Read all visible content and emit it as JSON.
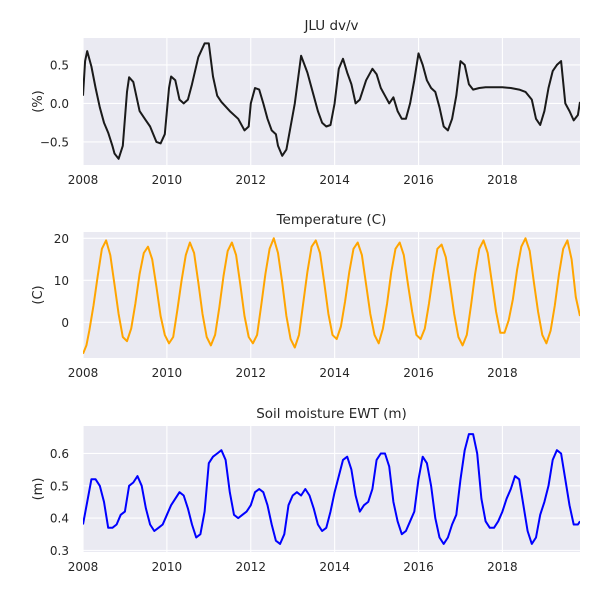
{
  "chart_data": [
    {
      "type": "line",
      "title": "JLU dv/v",
      "xlabel": "",
      "ylabel": "(%)",
      "xlim": [
        2008.0,
        2019.85
      ],
      "ylim": [
        -0.8,
        0.85
      ],
      "xticks": [
        2008,
        2010,
        2012,
        2014,
        2016,
        2018
      ],
      "xtick_labels": [
        "2008",
        "2010",
        "2012",
        "2014",
        "2016",
        "2018"
      ],
      "yticks": [
        -0.5,
        0.0,
        0.5
      ],
      "ytick_labels": [
        "−0.5",
        "0.0",
        "0.5"
      ],
      "grid": true,
      "legend": "none",
      "series": [
        {
          "color": "#1a1a1a",
          "x": [
            2008.0,
            2008.05,
            2008.1,
            2008.2,
            2008.3,
            2008.4,
            2008.5,
            2008.6,
            2008.7,
            2008.75,
            2008.85,
            2008.95,
            2009.05,
            2009.1,
            2009.2,
            2009.35,
            2009.5,
            2009.6,
            2009.75,
            2009.85,
            2009.95,
            2010.05,
            2010.1,
            2010.2,
            2010.3,
            2010.4,
            2010.5,
            2010.6,
            2010.75,
            2010.9,
            2011.0,
            2011.1,
            2011.2,
            2011.3,
            2011.5,
            2011.7,
            2011.85,
            2011.95,
            2012.0,
            2012.1,
            2012.2,
            2012.3,
            2012.4,
            2012.5,
            2012.6,
            2012.65,
            2012.75,
            2012.85,
            2012.95,
            2013.05,
            2013.2,
            2013.35,
            2013.5,
            2013.6,
            2013.7,
            2013.8,
            2013.9,
            2014.0,
            2014.1,
            2014.2,
            2014.3,
            2014.4,
            2014.5,
            2014.6,
            2014.75,
            2014.9,
            2015.0,
            2015.1,
            2015.2,
            2015.3,
            2015.4,
            2015.5,
            2015.6,
            2015.7,
            2015.8,
            2015.9,
            2016.0,
            2016.1,
            2016.2,
            2016.3,
            2016.4,
            2016.5,
            2016.6,
            2016.7,
            2016.8,
            2016.9,
            2017.0,
            2017.1,
            2017.2,
            2017.3,
            2017.45,
            2017.6,
            2017.8,
            2018.0,
            2018.2,
            2018.4,
            2018.55,
            2018.7,
            2018.8,
            2018.9,
            2019.0,
            2019.1,
            2019.2,
            2019.3,
            2019.4,
            2019.5,
            2019.6,
            2019.7,
            2019.8,
            2019.85
          ],
          "y": [
            0.1,
            0.55,
            0.68,
            0.48,
            0.2,
            -0.05,
            -0.25,
            -0.38,
            -0.55,
            -0.65,
            -0.72,
            -0.55,
            0.15,
            0.34,
            0.28,
            -0.1,
            -0.22,
            -0.3,
            -0.5,
            -0.52,
            -0.4,
            0.2,
            0.35,
            0.3,
            0.05,
            0.0,
            0.05,
            0.25,
            0.6,
            0.78,
            0.78,
            0.35,
            0.1,
            0.02,
            -0.1,
            -0.2,
            -0.35,
            -0.3,
            0.0,
            0.2,
            0.18,
            0.0,
            -0.2,
            -0.35,
            -0.4,
            -0.55,
            -0.68,
            -0.6,
            -0.3,
            0.0,
            0.62,
            0.4,
            0.1,
            -0.1,
            -0.25,
            -0.3,
            -0.28,
            0.0,
            0.45,
            0.58,
            0.4,
            0.25,
            0.0,
            0.05,
            0.3,
            0.45,
            0.38,
            0.2,
            0.1,
            0.0,
            0.08,
            -0.1,
            -0.2,
            -0.2,
            0.0,
            0.3,
            0.65,
            0.5,
            0.3,
            0.2,
            0.15,
            -0.05,
            -0.3,
            -0.35,
            -0.2,
            0.1,
            0.55,
            0.5,
            0.25,
            0.18,
            0.2,
            0.21,
            0.21,
            0.21,
            0.2,
            0.18,
            0.15,
            0.05,
            -0.2,
            -0.28,
            -0.1,
            0.2,
            0.42,
            0.5,
            0.55,
            0.0,
            -0.1,
            -0.22,
            -0.15,
            0.02
          ]
        }
      ]
    },
    {
      "type": "line",
      "title": "Temperature (C)",
      "xlabel": "",
      "ylabel": "(C)",
      "xlim": [
        2008.0,
        2019.85
      ],
      "ylim": [
        -8.5,
        21.5
      ],
      "xticks": [
        2008,
        2010,
        2012,
        2014,
        2016,
        2018
      ],
      "xtick_labels": [
        "2008",
        "2010",
        "2012",
        "2014",
        "2016",
        "2018"
      ],
      "yticks": [
        0,
        10,
        20
      ],
      "ytick_labels": [
        "0",
        "10",
        "20"
      ],
      "grid": true,
      "legend": "none",
      "series": [
        {
          "color": "#ffa500",
          "x": [
            2008.0,
            2008.08,
            2008.15,
            2008.25,
            2008.35,
            2008.45,
            2008.55,
            2008.65,
            2008.75,
            2008.85,
            2008.95,
            2009.05,
            2009.15,
            2009.25,
            2009.35,
            2009.45,
            2009.55,
            2009.65,
            2009.75,
            2009.85,
            2009.95,
            2010.05,
            2010.15,
            2010.25,
            2010.35,
            2010.45,
            2010.55,
            2010.65,
            2010.75,
            2010.85,
            2010.95,
            2011.05,
            2011.15,
            2011.25,
            2011.35,
            2011.45,
            2011.55,
            2011.65,
            2011.75,
            2011.85,
            2011.95,
            2012.05,
            2012.15,
            2012.25,
            2012.35,
            2012.45,
            2012.55,
            2012.65,
            2012.75,
            2012.85,
            2012.95,
            2013.05,
            2013.15,
            2013.25,
            2013.35,
            2013.45,
            2013.55,
            2013.65,
            2013.75,
            2013.85,
            2013.95,
            2014.05,
            2014.15,
            2014.25,
            2014.35,
            2014.45,
            2014.55,
            2014.65,
            2014.75,
            2014.85,
            2014.95,
            2015.05,
            2015.15,
            2015.25,
            2015.35,
            2015.45,
            2015.55,
            2015.65,
            2015.75,
            2015.85,
            2015.95,
            2016.05,
            2016.15,
            2016.25,
            2016.35,
            2016.45,
            2016.55,
            2016.65,
            2016.75,
            2016.85,
            2016.95,
            2017.05,
            2017.15,
            2017.25,
            2017.35,
            2017.45,
            2017.55,
            2017.65,
            2017.75,
            2017.85,
            2017.95,
            2018.05,
            2018.15,
            2018.25,
            2018.35,
            2018.45,
            2018.55,
            2018.65,
            2018.75,
            2018.85,
            2018.95,
            2019.05,
            2019.15,
            2019.25,
            2019.35,
            2019.45,
            2019.55,
            2019.65,
            2019.75,
            2019.85
          ],
          "y": [
            -7.5,
            -5.5,
            -2.0,
            4.0,
            11.0,
            17.5,
            19.5,
            16.0,
            9.0,
            2.0,
            -3.5,
            -4.5,
            -1.5,
            4.5,
            11.5,
            16.5,
            18.0,
            15.0,
            8.5,
            1.5,
            -3.0,
            -5.0,
            -3.5,
            3.0,
            10.0,
            16.0,
            19.0,
            16.5,
            9.5,
            2.0,
            -3.5,
            -5.5,
            -3.0,
            3.5,
            11.0,
            17.0,
            19.0,
            16.0,
            9.0,
            1.5,
            -3.5,
            -5.0,
            -3.0,
            4.0,
            11.5,
            17.5,
            20.0,
            16.5,
            9.5,
            1.5,
            -4.0,
            -6.0,
            -3.0,
            4.5,
            12.0,
            18.0,
            19.5,
            16.5,
            9.5,
            2.0,
            -3.0,
            -4.0,
            -1.0,
            5.0,
            12.0,
            17.5,
            19.0,
            16.0,
            9.0,
            2.0,
            -3.0,
            -5.0,
            -1.5,
            4.5,
            12.0,
            17.5,
            19.0,
            16.0,
            9.0,
            2.5,
            -3.0,
            -4.0,
            -1.5,
            4.5,
            11.5,
            17.5,
            18.5,
            15.5,
            9.0,
            2.0,
            -3.5,
            -5.5,
            -3.0,
            4.0,
            11.5,
            17.5,
            19.5,
            16.5,
            9.5,
            2.5,
            -2.5,
            -2.5,
            0.5,
            5.5,
            12.5,
            18.0,
            20.0,
            17.0,
            9.5,
            2.5,
            -3.0,
            -5.0,
            -2.0,
            4.0,
            11.5,
            17.5,
            19.5,
            15.0,
            6.0,
            1.5
          ]
        }
      ]
    },
    {
      "type": "line",
      "title": "Soil moisture EWT (m)",
      "xlabel": "",
      "ylabel": "(m)",
      "xlim": [
        2008.0,
        2019.85
      ],
      "ylim": [
        0.295,
        0.685
      ],
      "xticks": [
        2008,
        2010,
        2012,
        2014,
        2016,
        2018
      ],
      "xtick_labels": [
        "2008",
        "2010",
        "2012",
        "2014",
        "2016",
        "2018"
      ],
      "yticks": [
        0.3,
        0.4,
        0.5,
        0.6
      ],
      "ytick_labels": [
        "0.3",
        "0.4",
        "0.5",
        "0.6"
      ],
      "grid": true,
      "legend": "none",
      "series": [
        {
          "color": "#0000ff",
          "x": [
            2008.0,
            2008.1,
            2008.2,
            2008.3,
            2008.4,
            2008.5,
            2008.6,
            2008.7,
            2008.8,
            2008.9,
            2009.0,
            2009.1,
            2009.2,
            2009.3,
            2009.4,
            2009.5,
            2009.6,
            2009.7,
            2009.8,
            2009.9,
            2010.0,
            2010.1,
            2010.2,
            2010.3,
            2010.4,
            2010.5,
            2010.6,
            2010.7,
            2010.8,
            2010.9,
            2011.0,
            2011.1,
            2011.2,
            2011.3,
            2011.4,
            2011.5,
            2011.6,
            2011.7,
            2011.8,
            2011.9,
            2012.0,
            2012.1,
            2012.2,
            2012.3,
            2012.4,
            2012.5,
            2012.6,
            2012.7,
            2012.8,
            2012.9,
            2013.0,
            2013.1,
            2013.2,
            2013.3,
            2013.4,
            2013.5,
            2013.6,
            2013.7,
            2013.8,
            2013.9,
            2014.0,
            2014.1,
            2014.2,
            2014.3,
            2014.4,
            2014.5,
            2014.6,
            2014.7,
            2014.8,
            2014.9,
            2015.0,
            2015.1,
            2015.2,
            2015.3,
            2015.4,
            2015.5,
            2015.6,
            2015.7,
            2015.8,
            2015.9,
            2016.0,
            2016.1,
            2016.2,
            2016.3,
            2016.4,
            2016.5,
            2016.6,
            2016.7,
            2016.8,
            2016.9,
            2017.0,
            2017.1,
            2017.2,
            2017.3,
            2017.4,
            2017.5,
            2017.6,
            2017.7,
            2017.8,
            2017.9,
            2018.0,
            2018.1,
            2018.2,
            2018.3,
            2018.4,
            2018.5,
            2018.6,
            2018.7,
            2018.8,
            2018.9,
            2019.0,
            2019.1,
            2019.2,
            2019.3,
            2019.4,
            2019.5,
            2019.6,
            2019.7,
            2019.8,
            2019.85
          ],
          "y": [
            0.38,
            0.45,
            0.52,
            0.52,
            0.5,
            0.45,
            0.37,
            0.37,
            0.38,
            0.41,
            0.42,
            0.5,
            0.51,
            0.53,
            0.5,
            0.43,
            0.38,
            0.36,
            0.37,
            0.38,
            0.41,
            0.44,
            0.46,
            0.48,
            0.47,
            0.43,
            0.38,
            0.34,
            0.35,
            0.42,
            0.57,
            0.59,
            0.6,
            0.61,
            0.58,
            0.48,
            0.41,
            0.4,
            0.41,
            0.42,
            0.44,
            0.48,
            0.49,
            0.48,
            0.44,
            0.38,
            0.33,
            0.32,
            0.35,
            0.44,
            0.47,
            0.48,
            0.47,
            0.49,
            0.47,
            0.43,
            0.38,
            0.36,
            0.37,
            0.42,
            0.48,
            0.53,
            0.58,
            0.59,
            0.55,
            0.47,
            0.42,
            0.44,
            0.45,
            0.49,
            0.58,
            0.6,
            0.6,
            0.56,
            0.45,
            0.39,
            0.35,
            0.36,
            0.39,
            0.42,
            0.52,
            0.59,
            0.57,
            0.5,
            0.4,
            0.34,
            0.32,
            0.34,
            0.38,
            0.41,
            0.52,
            0.61,
            0.66,
            0.66,
            0.6,
            0.46,
            0.39,
            0.37,
            0.37,
            0.39,
            0.42,
            0.46,
            0.49,
            0.53,
            0.52,
            0.44,
            0.36,
            0.32,
            0.34,
            0.41,
            0.45,
            0.5,
            0.58,
            0.61,
            0.6,
            0.52,
            0.44,
            0.38,
            0.38,
            0.39
          ]
        }
      ]
    }
  ]
}
